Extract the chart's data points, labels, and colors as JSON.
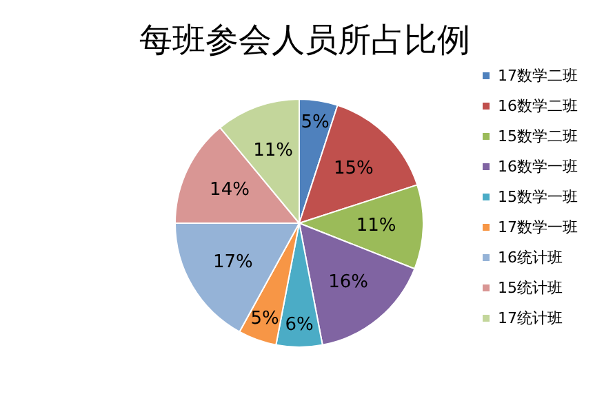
{
  "chart_data": {
    "type": "pie",
    "title": "每班参会人员所占比例",
    "categories": [
      "17数学二班",
      "16数学二班",
      "15数学二班",
      "16数学一班",
      "15数学一班",
      "17数学一班",
      "16统计班",
      "15统计班",
      "17统计班"
    ],
    "values": [
      5,
      15,
      11,
      16,
      6,
      5,
      17,
      14,
      11
    ],
    "colors": [
      "#4f81bd",
      "#c0504d",
      "#9bbb59",
      "#8064a2",
      "#4bacc6",
      "#f79646",
      "#95b3d7",
      "#d99694",
      "#c3d69b"
    ],
    "value_labels": [
      "5%",
      "15%",
      "11%",
      "16%",
      "6%",
      "5%",
      "17%",
      "14%",
      "11%"
    ],
    "legend": "right"
  }
}
